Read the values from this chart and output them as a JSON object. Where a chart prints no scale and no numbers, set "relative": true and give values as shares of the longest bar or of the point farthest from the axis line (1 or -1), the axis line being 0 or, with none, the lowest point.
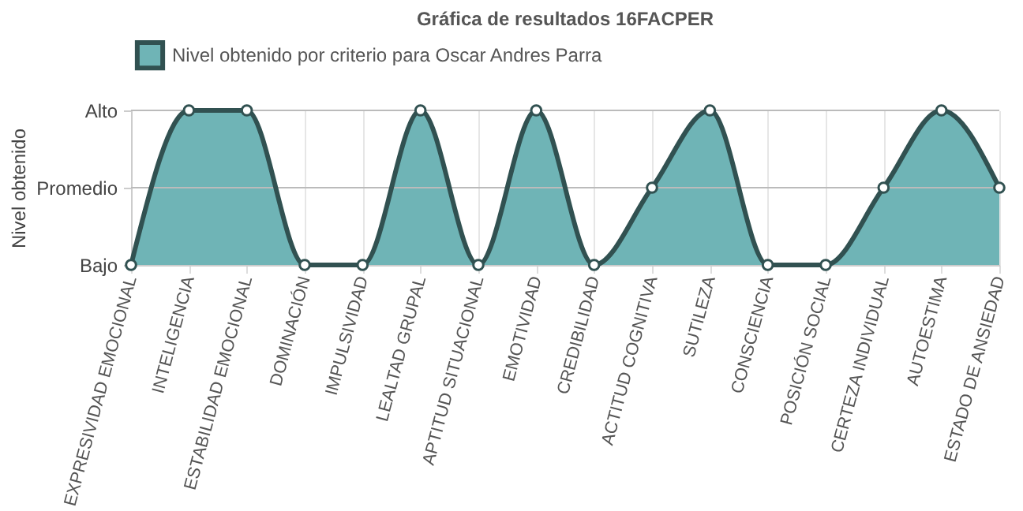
{
  "chart_data": {
    "type": "area",
    "title": "Gráfica de resultados 16FACPER",
    "ylabel": "Nivel obtenido",
    "categories": [
      "EXPRESIVIDAD EMOCIONAL",
      "INTELIGENCIA",
      "ESTABILIDAD EMOCIONAL",
      "DOMINACIÓN",
      "IMPULSIVIDAD",
      "LEALTAD GRUPAL",
      "APTITUD SITUACIONAL",
      "EMOTIVIDAD",
      "CREDIBILIDAD",
      "ACTITUD COGNITIVA",
      "SUTILEZA",
      "CONSCIENCIA",
      "POSICIÓN SOCIAL",
      "CERTEZA INDIVIDUAL",
      "AUTOESTIMA",
      "ESTADO DE ANSIEDAD"
    ],
    "y_categories": [
      "Alto",
      "Promedio",
      "Bajo"
    ],
    "relative": true,
    "series": [
      {
        "name": "Nivel obtenido por criterio para Oscar Andres Parra",
        "color": "#6fb4b6",
        "values": [
          0,
          1,
          1,
          0,
          0,
          1,
          0,
          1,
          0,
          0.5,
          1,
          0,
          0,
          0.5,
          1,
          0.5
        ]
      }
    ],
    "ref_lines": [
      {
        "axis": "y",
        "value": 1,
        "label": null,
        "color": "#bbbbbb"
      },
      {
        "axis": "y",
        "value": 0.5,
        "label": null,
        "color": "#bbbbbb"
      }
    ],
    "grid": "x",
    "legend": "top",
    "marker": "circle",
    "line_style": "solid"
  }
}
